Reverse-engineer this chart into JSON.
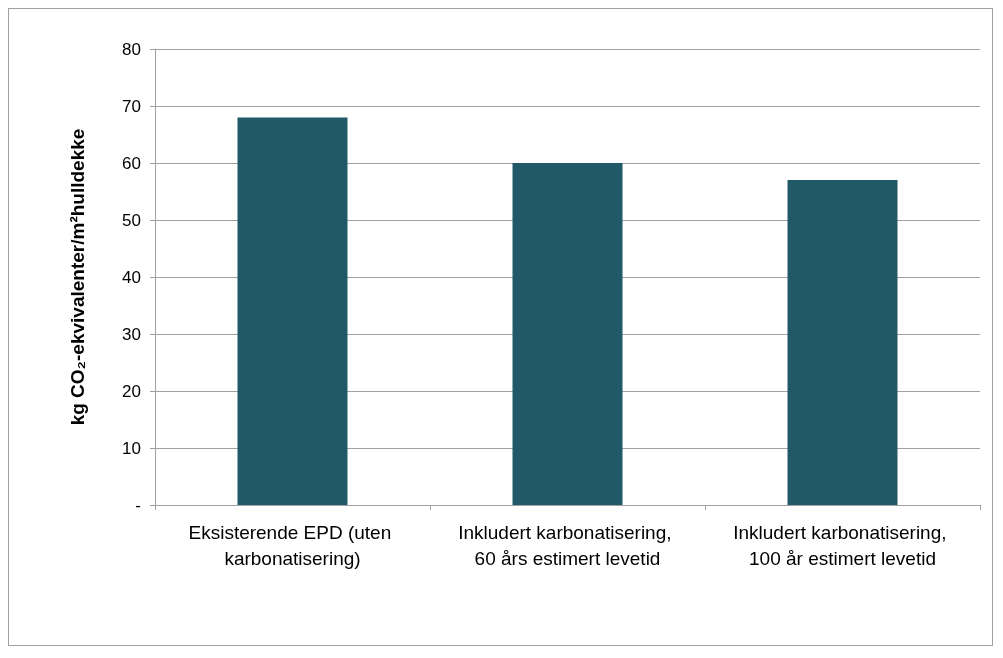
{
  "chart_data": {
    "type": "bar",
    "ylabel": "kg CO₂-ekvivalenter/m²hulldekke",
    "categories": [
      "Eksisterende EPD (uten karbonatisering)",
      "Inkludert karbonatisering, 60 års estimert levetid",
      "Inkludert karbonatisering, 100 år estimert levetid"
    ],
    "values": [
      68,
      60,
      57
    ],
    "color": "#215968",
    "ylim": [
      0,
      80
    ],
    "yticks": [
      {
        "value": 0,
        "label": "-"
      },
      10,
      20,
      30,
      40,
      50,
      60,
      70,
      80
    ],
    "grid": "y"
  }
}
